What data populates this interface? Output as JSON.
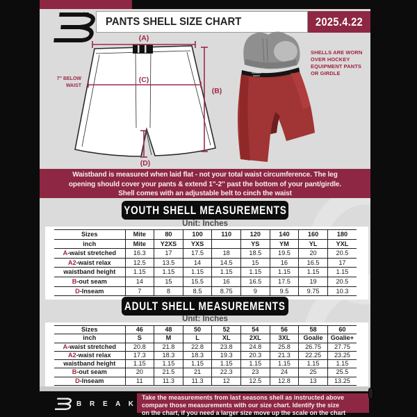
{
  "colors": {
    "maroon": "#8e2743",
    "page_bg": "#dbdbdb",
    "black": "#0d0d0d",
    "shell_red": "#a13434",
    "label_red": "#a02440"
  },
  "header": {
    "title": "PANTS SHELL SIZE CHART",
    "date": "2025.4.22"
  },
  "diagram": {
    "label_a": "(A)",
    "label_b": "(B)",
    "label_c": "(C)",
    "label_d": "(D)",
    "waist_note": [
      "7'' BELOW",
      "WAIST"
    ],
    "photo_note": [
      "SHELLS ARE WORN",
      "OVER HOCKEY",
      "EQUIPMENT PANTS",
      "OR GIRDLE"
    ]
  },
  "notice": {
    "lines": [
      "Waistband is measured when laid flat - not your total waist circumference. The leg",
      "opening should cover your pants & extend 1''-2'' past the bottom of your pant/girdle.",
      "Shell comes with an adjustable belt to cinch the waist"
    ]
  },
  "youth": {
    "title": "YOUTH SHELL MEASUREMENTS",
    "unit": "Unit: Inches",
    "table": {
      "rows": [
        {
          "prefix": "",
          "label": "Sizes",
          "header": true,
          "cells": [
            "Mite",
            "80",
            "100",
            "110",
            "120",
            "140",
            "160",
            "180"
          ]
        },
        {
          "prefix": "",
          "label": "inch",
          "header": true,
          "cells": [
            "Mite",
            "Y2XS",
            "YXS",
            "",
            "YS",
            "YM",
            "YL",
            "YXL"
          ]
        },
        {
          "prefix": "A",
          "label": "-waist stretched",
          "header": false,
          "cells": [
            "16.3",
            "17",
            "17.5",
            "18",
            "18.5",
            "19.5",
            "20",
            "20.5"
          ]
        },
        {
          "prefix": "A2",
          "label": "-waist relax",
          "header": false,
          "cells": [
            "12.5",
            "13.5",
            "14",
            "14.5",
            "15",
            "16",
            "16.5",
            "17"
          ]
        },
        {
          "prefix": "",
          "label": "waistband height",
          "header": false,
          "cells": [
            "1.15",
            "1.15",
            "1.15",
            "1.15",
            "1.15",
            "1.15",
            "1.15",
            "1.15"
          ]
        },
        {
          "prefix": "B",
          "label": "-out seam",
          "header": false,
          "cells": [
            "14",
            "15",
            "15.5",
            "16",
            "16.5",
            "17.5",
            "19",
            "20.5"
          ]
        },
        {
          "prefix": "D",
          "label": "-Inseam",
          "header": false,
          "cells": [
            "7",
            "8",
            "8.5",
            "8.75",
            "9",
            "9.5",
            "9.75",
            "10.3"
          ]
        }
      ]
    }
  },
  "adult": {
    "title": "ADULT SHELL MEASUREMENTS",
    "unit": "Unit: Inches",
    "table": {
      "rows": [
        {
          "prefix": "",
          "label": "Sizes",
          "header": true,
          "cells": [
            "46",
            "48",
            "50",
            "52",
            "54",
            "56",
            "58",
            "60"
          ]
        },
        {
          "prefix": "",
          "label": "inch",
          "header": true,
          "cells": [
            "S",
            "M",
            "L",
            "XL",
            "2XL",
            "3XL",
            "Goalie",
            "Goalie+"
          ]
        },
        {
          "prefix": "A",
          "label": "-waist stretched",
          "header": false,
          "cells": [
            "20.8",
            "21.8",
            "22.8",
            "23.8",
            "24.8",
            "25.8",
            "26.75",
            "27.75"
          ]
        },
        {
          "prefix": "A2",
          "label": "-waist relax",
          "header": false,
          "cells": [
            "17.3",
            "18.3",
            "18.3",
            "19.3",
            "20.3",
            "21.3",
            "22.25",
            "23.25"
          ]
        },
        {
          "prefix": "",
          "label": "waistband height",
          "header": false,
          "cells": [
            "1.15",
            "1.15",
            "1.15",
            "1.15",
            "1.15",
            "1.15",
            "1.15",
            "1.15"
          ]
        },
        {
          "prefix": "B",
          "label": "-out seam",
          "header": false,
          "cells": [
            "20",
            "21.5",
            "21",
            "22.3",
            "23",
            "24",
            "25",
            "25.5"
          ]
        },
        {
          "prefix": "D",
          "label": "-Inseam",
          "header": false,
          "cells": [
            "11",
            "11.3",
            "11.3",
            "12",
            "12.5",
            "12.8",
            "13",
            "13.25"
          ]
        }
      ]
    }
  },
  "footer": {
    "brand": "B R E A K A W A Y",
    "note_lines": [
      "Take the measurements from last seasons shell as instructed above",
      "compare those measurements  with our size chart. Identify the size",
      "on the chart, if you need a larger size move up the scale on the chart"
    ]
  }
}
